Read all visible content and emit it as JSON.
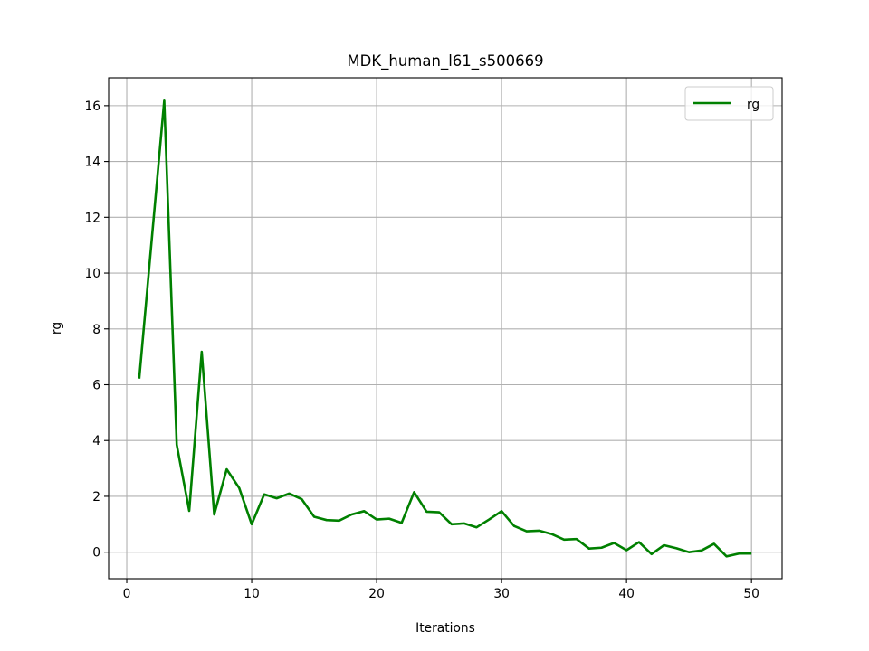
{
  "chart_data": {
    "type": "line",
    "title": "MDK_human_l61_s500669",
    "xlabel": "Iterations",
    "ylabel": "rg",
    "xlim": [
      -1.45,
      52.45
    ],
    "ylim": [
      -0.95,
      17.0
    ],
    "xticks": [
      0,
      10,
      20,
      30,
      40,
      50
    ],
    "yticks": [
      0,
      2,
      4,
      6,
      8,
      10,
      12,
      14,
      16
    ],
    "grid": true,
    "legend_position": "top-right",
    "series": [
      {
        "name": "rg",
        "color": "#008000",
        "x": [
          1,
          2,
          3,
          4,
          5,
          6,
          7,
          8,
          9,
          10,
          11,
          12,
          13,
          14,
          15,
          16,
          17,
          18,
          19,
          20,
          21,
          22,
          23,
          24,
          25,
          26,
          27,
          28,
          29,
          30,
          31,
          32,
          33,
          34,
          35,
          36,
          37,
          38,
          39,
          40,
          41,
          42,
          43,
          44,
          45,
          46,
          47,
          48,
          49,
          50
        ],
        "y": [
          6.22,
          11.2,
          16.18,
          3.85,
          1.48,
          7.18,
          1.35,
          2.97,
          2.3,
          1.0,
          2.07,
          1.93,
          2.1,
          1.9,
          1.27,
          1.15,
          1.13,
          1.35,
          1.47,
          1.17,
          1.2,
          1.05,
          2.15,
          1.45,
          1.43,
          1.0,
          1.03,
          0.89,
          1.17,
          1.47,
          0.94,
          0.75,
          0.77,
          0.65,
          0.45,
          0.47,
          0.13,
          0.16,
          0.33,
          0.07,
          0.36,
          -0.07,
          0.25,
          0.14,
          0.0,
          0.06,
          0.3,
          -0.15,
          -0.05,
          -0.05
        ]
      }
    ]
  }
}
